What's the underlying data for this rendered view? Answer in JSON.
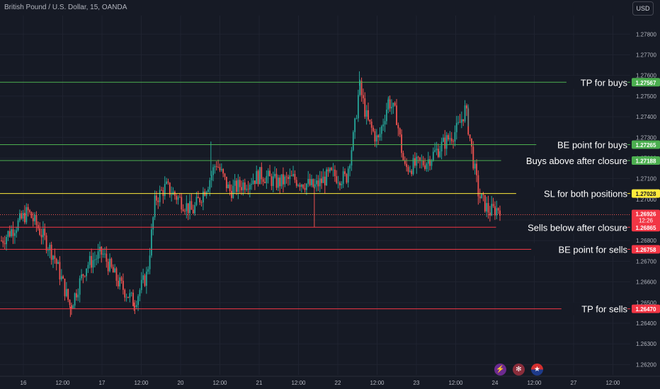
{
  "header": {
    "title": "British Pound / U.S. Dollar, 15, OANDA",
    "currency_button": "USD"
  },
  "colors": {
    "background": "#161a25",
    "grid": "#1f2330",
    "up": "#26a69a",
    "down": "#ef5350",
    "buy_line": "#4caf50",
    "sell_line": "#f23645",
    "sl_line": "#ffeb3b",
    "price_label_bg": "#f23645"
  },
  "chart_data": {
    "type": "candlestick",
    "ylim": [
      1.2615,
      1.2789
    ],
    "grid": true,
    "y_ticks": [
      "1.27800",
      "1.27700",
      "1.27600",
      "1.27500",
      "1.27400",
      "1.27300",
      "1.27200",
      "1.27100",
      "1.27000",
      "1.26900",
      "1.26800",
      "1.26700",
      "1.26600",
      "1.26500",
      "1.26400",
      "1.26300",
      "1.26200"
    ],
    "x_ticks": [
      "16",
      "12:00",
      "17",
      "12:00",
      "20",
      "12:00",
      "21",
      "12:00",
      "22",
      "12:00",
      "23",
      "12:00",
      "24",
      "12:00",
      "27",
      "12:00"
    ],
    "levels": [
      {
        "price": 1.27567,
        "label": "1.27567",
        "annotation": "TP for buys",
        "kind": "buy"
      },
      {
        "price": 1.27265,
        "label": "1.27265",
        "annotation": "BE point for buys",
        "kind": "buy"
      },
      {
        "price": 1.27188,
        "label": "1.27188",
        "annotation": "Buys above after closure",
        "kind": "buy"
      },
      {
        "price": 1.27028,
        "label": "1.27028",
        "annotation": "SL for both positions",
        "kind": "sl"
      },
      {
        "price": 1.26865,
        "label": "1.26865",
        "annotation": "Sells below after closure",
        "kind": "sell"
      },
      {
        "price": 1.26758,
        "label": "1.26758",
        "annotation": "BE point for sells",
        "kind": "sell"
      },
      {
        "price": 1.2647,
        "label": "1.26470",
        "annotation": "TP for sells",
        "kind": "sell"
      }
    ],
    "current_price": {
      "price": 1.26926,
      "label": "1.26926",
      "countdown": "12:26"
    },
    "price_path": [
      {
        "t": 0.0,
        "p": 1.268
      },
      {
        "t": 0.3,
        "p": 1.2688
      },
      {
        "t": 0.5,
        "p": 1.2694
      },
      {
        "t": 0.7,
        "p": 1.2686
      },
      {
        "t": 1.0,
        "p": 1.2672
      },
      {
        "t": 1.3,
        "p": 1.2648
      },
      {
        "t": 1.6,
        "p": 1.2668
      },
      {
        "t": 1.9,
        "p": 1.2674
      },
      {
        "t": 2.2,
        "p": 1.266
      },
      {
        "t": 2.5,
        "p": 1.265
      },
      {
        "t": 2.75,
        "p": 1.2664
      },
      {
        "t": 2.9,
        "p": 1.27
      },
      {
        "t": 3.1,
        "p": 1.2706
      },
      {
        "t": 3.4,
        "p": 1.2699
      },
      {
        "t": 3.6,
        "p": 1.2694
      },
      {
        "t": 3.9,
        "p": 1.2708
      },
      {
        "t": 4.05,
        "p": 1.2718
      },
      {
        "t": 4.3,
        "p": 1.2704
      },
      {
        "t": 4.6,
        "p": 1.2708
      },
      {
        "t": 4.9,
        "p": 1.2712
      },
      {
        "t": 5.2,
        "p": 1.2708
      },
      {
        "t": 5.5,
        "p": 1.271
      },
      {
        "t": 5.9,
        "p": 1.2706
      },
      {
        "t": 6.2,
        "p": 1.2712
      },
      {
        "t": 6.5,
        "p": 1.271
      },
      {
        "t": 6.65,
        "p": 1.2732
      },
      {
        "t": 6.75,
        "p": 1.2755
      },
      {
        "t": 6.9,
        "p": 1.2738
      },
      {
        "t": 7.1,
        "p": 1.2728
      },
      {
        "t": 7.3,
        "p": 1.2748
      },
      {
        "t": 7.45,
        "p": 1.274
      },
      {
        "t": 7.6,
        "p": 1.2715
      },
      {
        "t": 8.0,
        "p": 1.2718
      },
      {
        "t": 8.3,
        "p": 1.2726
      },
      {
        "t": 8.6,
        "p": 1.2734
      },
      {
        "t": 8.75,
        "p": 1.2744
      },
      {
        "t": 8.9,
        "p": 1.2718
      },
      {
        "t": 9.0,
        "p": 1.2702
      },
      {
        "t": 9.2,
        "p": 1.2694
      },
      {
        "t": 9.4,
        "p": 1.2696
      }
    ]
  },
  "footer_icons": [
    "lightning-icon",
    "calendar-icon",
    "us-flag-icon"
  ]
}
